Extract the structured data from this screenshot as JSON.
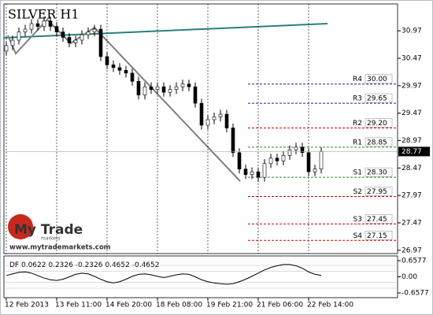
{
  "chart_data": {
    "type": "candlestick",
    "title": "SILVER H1",
    "xlim": [
      -0.375,
      62.125
    ],
    "xticks": [
      {
        "value": 0,
        "label": "12 Feb 2013"
      },
      {
        "value": 8,
        "label": "13 Feb 11:00"
      },
      {
        "value": 16,
        "label": "14 Feb 20:00"
      },
      {
        "value": 24,
        "label": "18 Feb 08:00"
      },
      {
        "value": 32,
        "label": "19 Feb 21:00"
      },
      {
        "value": 40,
        "label": "21 Feb 06:00"
      },
      {
        "value": 48,
        "label": "22 Feb 14:00"
      }
    ],
    "ylim": [
      26.91,
      31.46
    ],
    "yticks": [
      30.97,
      30.47,
      29.97,
      29.47,
      28.97,
      28.47,
      27.97,
      27.47,
      26.97
    ],
    "open": [
      30.6,
      30.7,
      30.8,
      30.95,
      31.0,
      31.1,
      31.05,
      31.15,
      31.05,
      30.95,
      30.85,
      30.75,
      30.8,
      30.9,
      30.95,
      31.0,
      30.5,
      30.35,
      30.3,
      30.25,
      30.2,
      30.05,
      29.8,
      29.95,
      29.9,
      29.95,
      29.85,
      29.9,
      29.95,
      30.0,
      29.95,
      29.65,
      29.25,
      29.35,
      29.4,
      29.45,
      29.2,
      28.75,
      28.45,
      28.35,
      28.4,
      28.3,
      28.55,
      28.65,
      28.6,
      28.7,
      28.8,
      28.85,
      28.75,
      28.4,
      28.45
    ],
    "high": [
      30.78,
      30.88,
      31.03,
      31.08,
      31.18,
      31.18,
      31.23,
      31.23,
      31.13,
      31.03,
      30.93,
      30.88,
      30.98,
      31.03,
      31.08,
      31.08,
      30.58,
      30.43,
      30.38,
      30.33,
      30.28,
      30.13,
      30.03,
      30.03,
      30.03,
      30.03,
      29.98,
      30.03,
      30.08,
      30.08,
      30.03,
      29.73,
      29.43,
      29.48,
      29.53,
      29.53,
      29.28,
      28.83,
      28.53,
      28.48,
      28.48,
      28.63,
      28.73,
      28.73,
      28.78,
      28.88,
      28.93,
      28.93,
      28.83,
      28.53,
      28.85
    ],
    "low": [
      30.52,
      30.62,
      30.72,
      30.87,
      30.92,
      30.97,
      30.97,
      30.97,
      30.87,
      30.77,
      30.67,
      30.67,
      30.72,
      30.82,
      30.87,
      30.42,
      30.27,
      30.22,
      30.17,
      30.12,
      29.97,
      29.72,
      29.72,
      29.82,
      29.82,
      29.77,
      29.77,
      29.82,
      29.87,
      29.87,
      29.57,
      29.17,
      29.17,
      29.27,
      29.32,
      29.12,
      28.67,
      28.37,
      28.27,
      28.27,
      28.22,
      28.22,
      28.47,
      28.52,
      28.52,
      28.62,
      28.72,
      28.67,
      28.32,
      28.32,
      28.37
    ],
    "close": [
      30.7,
      30.8,
      30.95,
      31.0,
      31.1,
      31.05,
      31.15,
      31.05,
      30.95,
      30.85,
      30.75,
      30.8,
      30.9,
      30.95,
      31.0,
      30.5,
      30.35,
      30.3,
      30.25,
      30.2,
      30.05,
      29.8,
      29.95,
      29.9,
      29.95,
      29.85,
      29.9,
      29.95,
      30.0,
      29.95,
      29.65,
      29.25,
      29.35,
      29.4,
      29.45,
      29.2,
      28.75,
      28.45,
      28.35,
      28.4,
      28.3,
      28.55,
      28.65,
      28.6,
      28.7,
      28.8,
      28.85,
      28.75,
      28.4,
      28.45,
      28.77
    ],
    "last_price": 28.77,
    "levels": [
      {
        "name": "R4",
        "value": 30,
        "label": "30.00",
        "color": "#1f1f99"
      },
      {
        "name": "R3",
        "value": 29.65,
        "color": "#1f1f99"
      },
      {
        "name": "R2",
        "value": 29.2,
        "label": "29.20",
        "color": "#cc0000"
      },
      {
        "name": "R1",
        "value": 28.85,
        "color": "#2e8b2e"
      },
      {
        "name": "S1",
        "value": 28.3,
        "label": "28.30",
        "color": "#2e8b2e"
      },
      {
        "name": "S2",
        "value": 27.95,
        "color": "#cc0000"
      },
      {
        "name": "S3",
        "value": 27.45,
        "color": "#cc0000"
      },
      {
        "name": "S4",
        "value": 27.15,
        "color": "#cc0000"
      }
    ],
    "indicator": {
      "type": "line",
      "name": "DF",
      "levels": [
        0.0622,
        0.2326,
        -0.2326,
        0.4652,
        -0.4652
      ],
      "ylim": [
        -0.85,
        0.85
      ],
      "yticks": [
        0.6577,
        {
          "value": 0,
          "label": "0.00"
        },
        -0.6577
      ],
      "color": "#000000",
      "values": [
        0.05,
        0.12,
        0.18,
        0.2,
        0.15,
        0.05,
        -0.05,
        -0.12,
        -0.15,
        -0.1,
        0,
        0.1,
        0.15,
        0.12,
        0.02,
        -0.1,
        -0.2,
        -0.25,
        -0.2,
        -0.1,
        0.02,
        0.1,
        0.12,
        0.08,
        0.02,
        -0.03,
        0.02,
        0.08,
        0.12,
        0.1,
        0,
        -0.12,
        -0.2,
        -0.25,
        -0.28,
        -0.3,
        -0.28,
        -0.2,
        -0.1,
        0.02,
        0.15,
        0.28,
        0.38,
        0.45,
        0.5,
        0.5,
        0.45,
        0.35,
        0.2,
        0.1,
        0.06
      ]
    },
    "logo": {
      "name": "My Trade",
      "sub": "markets",
      "url": "www.mytrademarkets.com"
    }
  }
}
